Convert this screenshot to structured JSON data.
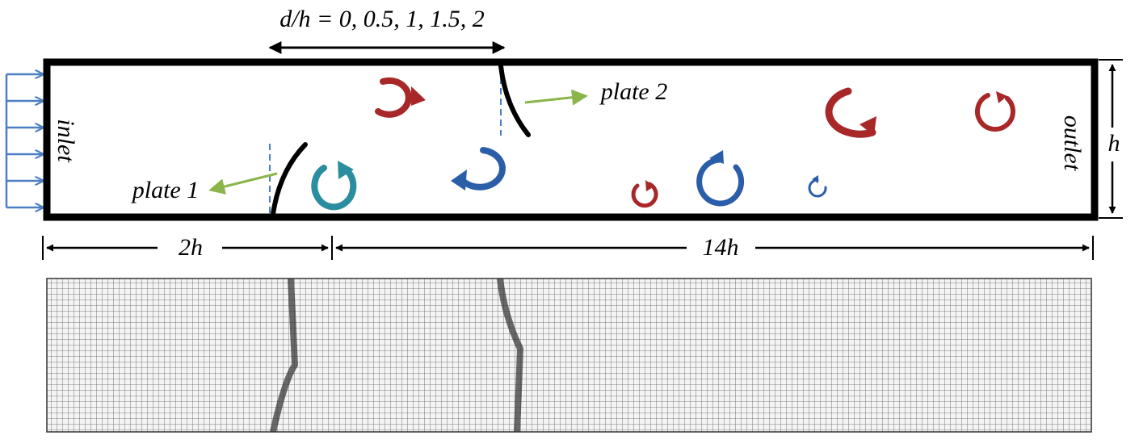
{
  "labels": {
    "spacing": "d/h = 0, 0.5, 1, 1.5, 2",
    "plate1": "plate 1",
    "plate2": "plate 2",
    "inlet": "inlet",
    "outlet": "outlet",
    "height": "h",
    "upstream_length": "2h",
    "downstream_length": "14h"
  },
  "colors": {
    "vortex_red": "#a8282a",
    "vortex_blue": "#2a5ea8",
    "vortex_teal": "#2a8ea0",
    "inflow_arrow": "#4a7fc1",
    "pointer": "#8ab54a",
    "wall": "#000000",
    "mesh_line": "#5a5a5a"
  },
  "vortices": [
    {
      "color": "red",
      "rotation": "clockwise"
    },
    {
      "color": "blue",
      "rotation": "counterclockwise"
    },
    {
      "color": "teal",
      "rotation": "clockwise"
    },
    {
      "color": "red",
      "rotation": "clockwise"
    },
    {
      "color": "blue",
      "rotation": "counterclockwise"
    },
    {
      "color": "red",
      "rotation": "clockwise"
    },
    {
      "color": "blue",
      "rotation": "counterclockwise"
    },
    {
      "color": "red",
      "rotation": "clockwise"
    }
  ]
}
